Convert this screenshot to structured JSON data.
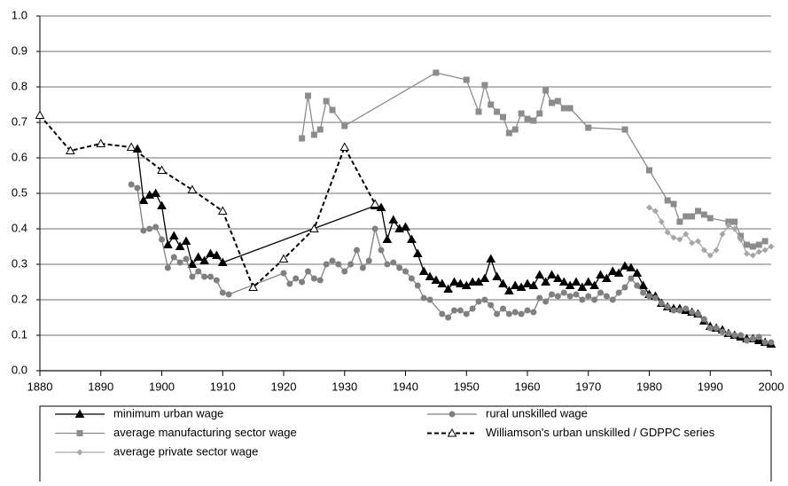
{
  "chart_data": {
    "type": "line",
    "xlim": [
      1880,
      2000
    ],
    "xticks": [
      1880,
      1890,
      1900,
      1910,
      1920,
      1930,
      1940,
      1950,
      1960,
      1970,
      1980,
      1990,
      2000
    ],
    "ylim": [
      0,
      1
    ],
    "yticks": [
      {
        "value": 0,
        "label": "0.0"
      },
      0.1,
      0.2,
      0.3,
      0.4,
      0.5,
      0.6,
      0.7,
      0.8,
      0.9,
      {
        "value": 1,
        "label": "1.0"
      }
    ],
    "grid": true,
    "series": [
      {
        "name": "minimum urban wage",
        "color": "#000000",
        "marker": "triangle",
        "dash": "solid",
        "x": [
          1896,
          1897,
          1898,
          1899,
          1900,
          1901,
          1902,
          1903,
          1904,
          1905,
          1906,
          1907,
          1908,
          1909,
          1910,
          1935,
          1936,
          1937,
          1938,
          1939,
          1940,
          1941,
          1942,
          1943,
          1944,
          1945,
          1946,
          1947,
          1948,
          1949,
          1950,
          1951,
          1952,
          1953,
          1954,
          1955,
          1956,
          1957,
          1958,
          1959,
          1960,
          1961,
          1962,
          1963,
          1964,
          1965,
          1966,
          1967,
          1968,
          1969,
          1970,
          1971,
          1972,
          1973,
          1974,
          1975,
          1976,
          1977,
          1978,
          1979,
          1980,
          1981,
          1982,
          1983,
          1984,
          1985,
          1986,
          1987,
          1988,
          1989,
          1990,
          1991,
          1992,
          1993,
          1994,
          1995,
          1996,
          1997,
          1998,
          1999,
          2000
        ],
        "values": [
          0.625,
          0.48,
          0.495,
          0.5,
          0.465,
          0.355,
          0.38,
          0.35,
          0.365,
          0.3,
          0.32,
          0.31,
          0.33,
          0.325,
          0.305,
          0.465,
          0.46,
          0.37,
          0.425,
          0.4,
          0.405,
          0.37,
          0.33,
          0.28,
          0.265,
          0.255,
          0.245,
          0.23,
          0.25,
          0.245,
          0.24,
          0.25,
          0.25,
          0.26,
          0.315,
          0.265,
          0.245,
          0.225,
          0.24,
          0.235,
          0.245,
          0.24,
          0.27,
          0.25,
          0.27,
          0.26,
          0.25,
          0.24,
          0.25,
          0.235,
          0.25,
          0.24,
          0.27,
          0.26,
          0.28,
          0.275,
          0.295,
          0.29,
          0.275,
          0.24,
          0.215,
          0.21,
          0.19,
          0.18,
          0.175,
          0.175,
          0.17,
          0.165,
          0.16,
          0.14,
          0.125,
          0.12,
          0.115,
          0.105,
          0.1,
          0.095,
          0.09,
          0.09,
          0.085,
          0.08,
          0.075
        ]
      },
      {
        "name": "rural unskilled wage",
        "color": "#808080",
        "marker": "circle",
        "dash": "solid",
        "x": [
          1895,
          1896,
          1897,
          1898,
          1899,
          1900,
          1901,
          1902,
          1903,
          1904,
          1905,
          1906,
          1907,
          1908,
          1909,
          1910,
          1911,
          1920,
          1921,
          1922,
          1923,
          1924,
          1925,
          1926,
          1927,
          1928,
          1929,
          1930,
          1931,
          1932,
          1933,
          1934,
          1935,
          1936,
          1937,
          1938,
          1939,
          1940,
          1941,
          1942,
          1943,
          1944,
          1946,
          1947,
          1948,
          1949,
          1950,
          1951,
          1952,
          1953,
          1954,
          1955,
          1956,
          1957,
          1958,
          1959,
          1960,
          1961,
          1962,
          1963,
          1964,
          1965,
          1966,
          1967,
          1968,
          1969,
          1970,
          1971,
          1972,
          1973,
          1974,
          1975,
          1976,
          1977,
          1978,
          1979,
          1980,
          1981,
          1982,
          1983,
          1984,
          1985,
          1986,
          1987,
          1988,
          1989,
          1990,
          1991,
          1992,
          1993,
          1994,
          1995,
          1996,
          1997,
          1998,
          1999,
          2000
        ],
        "values": [
          0.525,
          0.515,
          0.395,
          0.4,
          0.405,
          0.37,
          0.29,
          0.32,
          0.305,
          0.315,
          0.265,
          0.28,
          0.265,
          0.265,
          0.255,
          0.22,
          0.215,
          0.275,
          0.245,
          0.26,
          0.25,
          0.28,
          0.26,
          0.255,
          0.3,
          0.31,
          0.3,
          0.28,
          0.3,
          0.34,
          0.29,
          0.31,
          0.4,
          0.34,
          0.3,
          0.305,
          0.29,
          0.28,
          0.26,
          0.24,
          0.205,
          0.2,
          0.16,
          0.15,
          0.17,
          0.17,
          0.16,
          0.175,
          0.195,
          0.2,
          0.185,
          0.16,
          0.175,
          0.16,
          0.165,
          0.16,
          0.17,
          0.165,
          0.205,
          0.195,
          0.215,
          0.21,
          0.22,
          0.21,
          0.215,
          0.2,
          0.21,
          0.2,
          0.22,
          0.21,
          0.2,
          0.22,
          0.235,
          0.26,
          0.24,
          0.22,
          0.21,
          0.205,
          0.19,
          0.18,
          0.17,
          0.17,
          0.175,
          0.165,
          0.16,
          0.145,
          0.12,
          0.12,
          0.11,
          0.105,
          0.1,
          0.1,
          0.085,
          0.09,
          0.095,
          0.08,
          0.08
        ]
      },
      {
        "name": "average manufacturing sector wage",
        "color": "#8c8c8c",
        "marker": "square",
        "dash": "solid",
        "x": [
          1923,
          1924,
          1925,
          1926,
          1927,
          1928,
          1930,
          1945,
          1950,
          1952,
          1953,
          1954,
          1955,
          1956,
          1957,
          1958,
          1959,
          1960,
          1961,
          1962,
          1963,
          1964,
          1965,
          1966,
          1967,
          1970,
          1976,
          1980,
          1983,
          1984,
          1985,
          1986,
          1987,
          1988,
          1989,
          1990,
          1993,
          1994,
          1995,
          1996,
          1997,
          1998,
          1999
        ],
        "values": [
          0.655,
          0.775,
          0.665,
          0.68,
          0.76,
          0.735,
          0.69,
          0.84,
          0.82,
          0.73,
          0.805,
          0.75,
          0.73,
          0.715,
          0.67,
          0.68,
          0.725,
          0.71,
          0.705,
          0.725,
          0.79,
          0.755,
          0.76,
          0.74,
          0.74,
          0.685,
          0.68,
          0.565,
          0.48,
          0.47,
          0.42,
          0.435,
          0.435,
          0.45,
          0.44,
          0.43,
          0.42,
          0.42,
          0.38,
          0.355,
          0.35,
          0.355,
          0.365
        ]
      },
      {
        "name": "Williamson's urban unskilled / GDPPC series",
        "color": "#000000",
        "marker": "open-triangle",
        "dash": "dashed",
        "x": [
          1880,
          1885,
          1890,
          1895,
          1900,
          1905,
          1910,
          1915,
          1920,
          1925,
          1930,
          1935
        ],
        "values": [
          0.72,
          0.62,
          0.64,
          0.63,
          0.565,
          0.51,
          0.45,
          0.235,
          0.315,
          0.4,
          0.63,
          0.47
        ]
      },
      {
        "name": "average private sector wage",
        "color": "#a6a6a6",
        "marker": "diamond",
        "dash": "solid",
        "x": [
          1980,
          1981,
          1982,
          1983,
          1984,
          1985,
          1986,
          1987,
          1988,
          1989,
          1990,
          1991,
          1992,
          1993,
          1994,
          1995,
          1996,
          1997,
          1998,
          1999,
          2000
        ],
        "values": [
          0.46,
          0.45,
          0.42,
          0.39,
          0.375,
          0.37,
          0.385,
          0.36,
          0.365,
          0.34,
          0.325,
          0.34,
          0.385,
          0.41,
          0.4,
          0.37,
          0.33,
          0.325,
          0.335,
          0.34,
          0.35
        ]
      }
    ]
  }
}
